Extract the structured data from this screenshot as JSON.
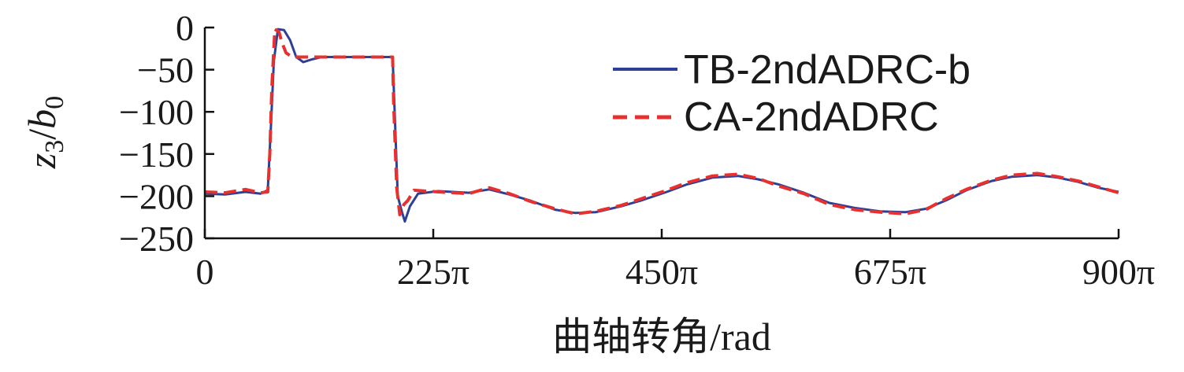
{
  "chart_data": {
    "type": "line",
    "xlabel": "曲轴转角/rad",
    "ylabel": {
      "z": "z",
      "z_sub": "3",
      "slash": "/",
      "b": "b",
      "b_sub": "0"
    },
    "xlim": [
      0,
      900
    ],
    "ylim": [
      -250,
      0
    ],
    "x_ticks": [
      0,
      225,
      450,
      675,
      900
    ],
    "x_tick_labels": [
      "0",
      "225π",
      "450π",
      "675π",
      "900π"
    ],
    "y_ticks": [
      0,
      -50,
      -100,
      -150,
      -200,
      -250
    ],
    "y_tick_labels": [
      "0",
      "−50",
      "−100",
      "−150",
      "−200",
      "−250"
    ],
    "legend_position": "top-right",
    "series": [
      {
        "name": "TB-2ndADRC-b",
        "color": "#2e3f96",
        "style": "solid",
        "points": [
          [
            0,
            -197
          ],
          [
            20,
            -198
          ],
          [
            40,
            -195
          ],
          [
            55,
            -197
          ],
          [
            62,
            -193
          ],
          [
            65,
            -120
          ],
          [
            68,
            -40
          ],
          [
            72,
            -2
          ],
          [
            78,
            -3
          ],
          [
            84,
            -15
          ],
          [
            90,
            -35
          ],
          [
            97,
            -41
          ],
          [
            105,
            -38
          ],
          [
            115,
            -35
          ],
          [
            125,
            -35
          ],
          [
            140,
            -35
          ],
          [
            160,
            -35
          ],
          [
            180,
            -35
          ],
          [
            185,
            -35
          ],
          [
            187,
            -100
          ],
          [
            190,
            -200
          ],
          [
            194,
            -218
          ],
          [
            197,
            -230
          ],
          [
            202,
            -212
          ],
          [
            210,
            -197
          ],
          [
            230,
            -194
          ],
          [
            260,
            -196
          ],
          [
            280,
            -192
          ],
          [
            300,
            -198
          ],
          [
            320,
            -205
          ],
          [
            345,
            -216
          ],
          [
            365,
            -220
          ],
          [
            385,
            -219
          ],
          [
            410,
            -212
          ],
          [
            430,
            -205
          ],
          [
            455,
            -195
          ],
          [
            475,
            -186
          ],
          [
            500,
            -178
          ],
          [
            525,
            -176
          ],
          [
            545,
            -180
          ],
          [
            565,
            -186
          ],
          [
            590,
            -196
          ],
          [
            615,
            -208
          ],
          [
            640,
            -214
          ],
          [
            665,
            -218
          ],
          [
            690,
            -219
          ],
          [
            710,
            -215
          ],
          [
            730,
            -205
          ],
          [
            750,
            -193
          ],
          [
            775,
            -182
          ],
          [
            795,
            -177
          ],
          [
            820,
            -175
          ],
          [
            840,
            -178
          ],
          [
            860,
            -183
          ],
          [
            880,
            -190
          ],
          [
            900,
            -195
          ]
        ]
      },
      {
        "name": "CA-2ndADRC",
        "color": "#e8312e",
        "style": "dashed",
        "points": [
          [
            0,
            -195
          ],
          [
            20,
            -196
          ],
          [
            40,
            -192
          ],
          [
            55,
            -196
          ],
          [
            62,
            -195
          ],
          [
            64,
            -150
          ],
          [
            66,
            -70
          ],
          [
            69,
            -2
          ],
          [
            73,
            -5
          ],
          [
            76,
            -18
          ],
          [
            80,
            -30
          ],
          [
            86,
            -35
          ],
          [
            100,
            -35
          ],
          [
            120,
            -35
          ],
          [
            140,
            -35
          ],
          [
            160,
            -35
          ],
          [
            180,
            -35
          ],
          [
            185,
            -35
          ],
          [
            186,
            -90
          ],
          [
            189,
            -190
          ],
          [
            192,
            -222
          ],
          [
            196,
            -210
          ],
          [
            200,
            -205
          ],
          [
            206,
            -193
          ],
          [
            230,
            -195
          ],
          [
            260,
            -197
          ],
          [
            280,
            -190
          ],
          [
            300,
            -197
          ],
          [
            320,
            -206
          ],
          [
            345,
            -215
          ],
          [
            365,
            -221
          ],
          [
            385,
            -218
          ],
          [
            410,
            -211
          ],
          [
            430,
            -203
          ],
          [
            455,
            -193
          ],
          [
            475,
            -184
          ],
          [
            500,
            -176
          ],
          [
            525,
            -174
          ],
          [
            545,
            -179
          ],
          [
            565,
            -188
          ],
          [
            590,
            -197
          ],
          [
            615,
            -210
          ],
          [
            640,
            -216
          ],
          [
            665,
            -219
          ],
          [
            690,
            -221
          ],
          [
            710,
            -216
          ],
          [
            730,
            -203
          ],
          [
            750,
            -192
          ],
          [
            775,
            -181
          ],
          [
            795,
            -175
          ],
          [
            820,
            -173
          ],
          [
            840,
            -177
          ],
          [
            860,
            -182
          ],
          [
            880,
            -189
          ],
          [
            900,
            -196
          ]
        ]
      }
    ]
  }
}
